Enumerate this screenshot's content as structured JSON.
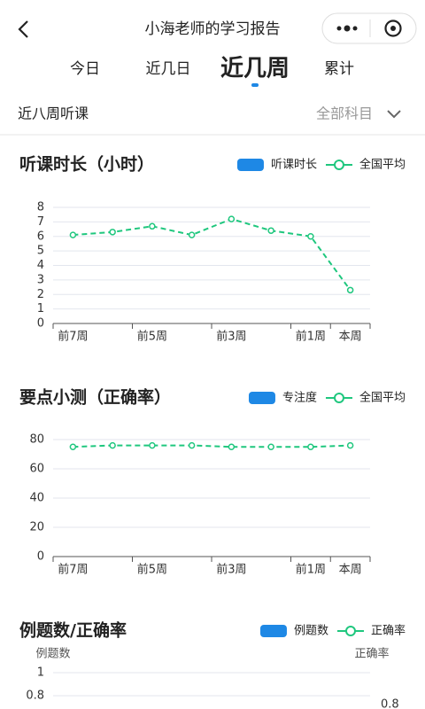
{
  "header": {
    "title": "小海老师的学习报告"
  },
  "tabs": [
    "今日",
    "近几日",
    "近几周",
    "累计"
  ],
  "active_tab": 2,
  "filter": {
    "label": "近八周听课",
    "subject": "全部科目"
  },
  "charts": [
    {
      "type": "line",
      "title": "听课时长（小时）",
      "categories": [
        "前7周",
        null,
        "前5周",
        null,
        "前3周",
        null,
        "前1周",
        "本周"
      ],
      "series": [
        {
          "name": "听课时长",
          "color": "#1e88e5",
          "type": "bar"
        },
        {
          "name": "全国平均",
          "color": "#1fc77e",
          "type": "line",
          "values": [
            6.1,
            6.3,
            6.7,
            6.1,
            7.2,
            6.4,
            6.0,
            2.3
          ]
        }
      ],
      "ylim": [
        0,
        8
      ],
      "yticks": [
        0,
        1,
        2,
        3,
        4,
        5,
        6,
        7,
        8
      ],
      "grid": true
    },
    {
      "type": "line",
      "title": "要点小测（正确率）",
      "categories": [
        "前7周",
        null,
        "前5周",
        null,
        "前3周",
        null,
        "前1周",
        "本周"
      ],
      "series": [
        {
          "name": "专注度",
          "color": "#1e88e5",
          "type": "bar"
        },
        {
          "name": "全国平均",
          "color": "#1fc77e",
          "type": "line",
          "values": [
            75,
            76,
            76,
            76,
            75,
            75,
            75,
            76
          ]
        }
      ],
      "ylim": [
        0,
        80
      ],
      "yticks": [
        0,
        20,
        40,
        60,
        80
      ],
      "grid": true
    },
    {
      "type": "combo",
      "title": "例题数/正确率",
      "series": [
        {
          "name": "例题数",
          "color": "#1e88e5",
          "type": "bar"
        },
        {
          "name": "正确率",
          "color": "#1fc77e",
          "type": "line",
          "axis": "y2"
        }
      ],
      "ylabel": "例题数",
      "y2label": "正确率",
      "ylim": [
        0,
        1
      ],
      "yticks": [
        0.8,
        1
      ],
      "y2lim": [
        0,
        1
      ],
      "y2ticks": [
        0.8
      ],
      "grid": true
    }
  ]
}
